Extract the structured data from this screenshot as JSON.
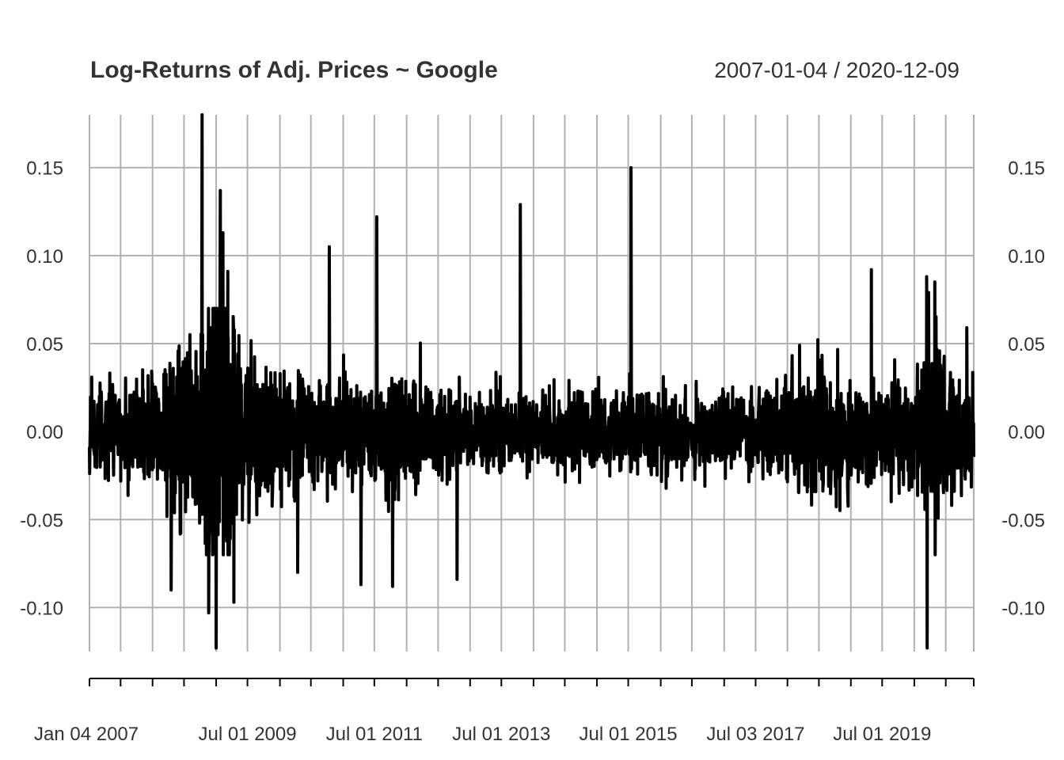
{
  "chart_data": {
    "type": "line",
    "title": "Log-Returns of Adj. Prices ~ Google",
    "date_range_label": "2007-01-04 / 2020-12-09",
    "x_range": [
      "2007-01-04",
      "2020-12-09"
    ],
    "ylim": [
      -0.125,
      0.18
    ],
    "grid": true,
    "y_ticks": [
      {
        "value": 0.15,
        "label": "0.15"
      },
      {
        "value": 0.1,
        "label": "0.10"
      },
      {
        "value": 0.05,
        "label": "0.05"
      },
      {
        "value": 0.0,
        "label": "0.00"
      },
      {
        "value": -0.05,
        "label": "-0.05"
      },
      {
        "value": -0.1,
        "label": "-0.10"
      }
    ],
    "x_gridlines": [
      "2007-01-04",
      "2007-07-02",
      "2008-01-02",
      "2008-07-01",
      "2009-01-02",
      "2009-07-01",
      "2010-01-04",
      "2010-07-01",
      "2011-01-03",
      "2011-07-01",
      "2012-01-03",
      "2012-07-02",
      "2013-01-02",
      "2013-07-01",
      "2014-01-02",
      "2014-07-01",
      "2015-01-02",
      "2015-07-01",
      "2016-01-04",
      "2016-07-01",
      "2017-01-03",
      "2017-07-03",
      "2018-01-02",
      "2018-07-02",
      "2019-01-02",
      "2019-07-01",
      "2020-01-02",
      "2020-07-01",
      "2020-12-09"
    ],
    "x_labels": [
      {
        "date": "2007-01-04",
        "label": "Jan 04 2007"
      },
      {
        "date": "2009-07-01",
        "label": "Jul 01 2009"
      },
      {
        "date": "2011-07-01",
        "label": "Jul 01 2011"
      },
      {
        "date": "2013-07-01",
        "label": "Jul 01 2013"
      },
      {
        "date": "2015-07-01",
        "label": "Jul 01 2015"
      },
      {
        "date": "2017-07-03",
        "label": "Jul 03 2017"
      },
      {
        "date": "2019-07-01",
        "label": "Jul 01 2019"
      }
    ],
    "series": [
      {
        "color": "#000000",
        "notable_points": [
          {
            "x": "2008-10-13",
            "y": 0.182
          },
          {
            "x": "2008-10-15",
            "y": -0.047
          },
          {
            "x": "2008-09-29",
            "y": -0.052
          },
          {
            "x": "2008-11-20",
            "y": -0.103
          },
          {
            "x": "2009-01-02",
            "y": -0.123
          },
          {
            "x": "2009-01-26",
            "y": 0.137
          },
          {
            "x": "2009-02-10",
            "y": 0.113
          },
          {
            "x": "2009-03-10",
            "y": 0.091
          },
          {
            "x": "2009-04-14",
            "y": -0.097
          },
          {
            "x": "2008-04-18",
            "y": -0.09
          },
          {
            "x": "2010-10-15",
            "y": 0.105
          },
          {
            "x": "2010-04-16",
            "y": -0.08
          },
          {
            "x": "2011-04-15",
            "y": -0.087
          },
          {
            "x": "2011-07-15",
            "y": 0.122
          },
          {
            "x": "2011-10-14",
            "y": -0.088
          },
          {
            "x": "2012-10-19",
            "y": -0.084
          },
          {
            "x": "2013-10-18",
            "y": 0.129
          },
          {
            "x": "2015-07-17",
            "y": 0.15
          },
          {
            "x": "2019-04-30",
            "y": 0.092
          },
          {
            "x": "2020-03-13",
            "y": 0.088
          },
          {
            "x": "2020-03-16",
            "y": -0.123
          },
          {
            "x": "2020-03-24",
            "y": 0.079
          },
          {
            "x": "2020-04-29",
            "y": 0.085
          },
          {
            "x": "2020-10-30",
            "y": 0.059
          }
        ]
      }
    ]
  }
}
